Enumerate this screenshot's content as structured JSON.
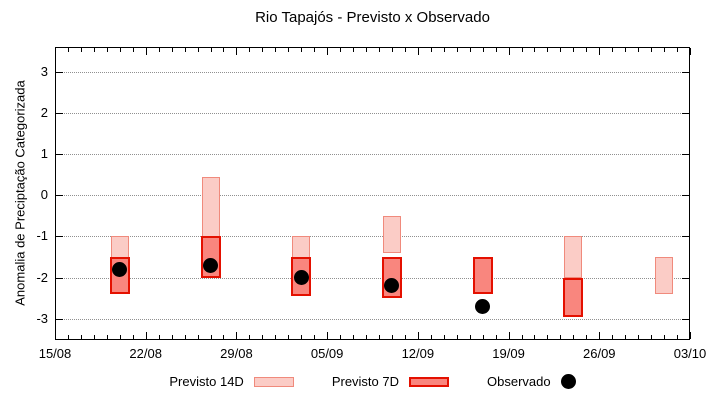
{
  "title": "Rio Tapajós - Previsto x Observado",
  "y_axis": {
    "label": "Anomalia de Preciptação Categorizada",
    "tick_labels": [
      "3",
      "2",
      "1",
      "0",
      "-1",
      "-2",
      "-3"
    ]
  },
  "x_axis": {
    "tick_labels": [
      "15/08",
      "22/08",
      "29/08",
      "05/09",
      "12/09",
      "19/09",
      "26/09",
      "03/10"
    ]
  },
  "legend": {
    "items": [
      {
        "label": "Previsto 14D",
        "marker": "box",
        "fill": "#fbccc6",
        "border": "#f08a7c"
      },
      {
        "label": "Previsto 7D",
        "marker": "box",
        "fill": "#f9867e",
        "border": "#e41000"
      },
      {
        "label": "Observado",
        "marker": "dot",
        "fill": "#000000"
      }
    ]
  },
  "colors": {
    "previsto14d_fill": "#fbccc6",
    "previsto14d_border": "#f08a7c",
    "previsto7d_fill": "#f9867e",
    "previsto7d_border": "#e41000",
    "observado": "#000000",
    "grid": "#909090",
    "axis": "#000000"
  },
  "chart_data": {
    "type": "bar",
    "subtype": "floating-range-bars-with-scatter-overlay",
    "title": "Rio Tapajós - Previsto x Observado",
    "xlabel": "",
    "ylabel": "Anomalia de Preciptação Categorizada",
    "x_tick_labels": [
      "15/08",
      "22/08",
      "29/08",
      "05/09",
      "12/09",
      "19/09",
      "26/09",
      "03/10"
    ],
    "x_tick_day_offsets": [
      0,
      7,
      14,
      21,
      28,
      35,
      42,
      49
    ],
    "x_minor_tick_every_days": 1,
    "xlim_days": [
      0,
      49
    ],
    "y_ticks": [
      -3,
      -2,
      -1,
      0,
      1,
      2,
      3
    ],
    "ylim": [
      -3.52,
      3.61
    ],
    "grid": {
      "horizontal": true,
      "style": "dotted",
      "legend_position": "bottom-outside"
    },
    "categories": [
      "20/08",
      "27/08",
      "03/09",
      "10/09",
      "17/09",
      "24/09",
      "01/10"
    ],
    "category_day_offsets": [
      5,
      12,
      19,
      26,
      33,
      40,
      47
    ],
    "series": [
      {
        "name": "Previsto 14D",
        "type": "range_bar",
        "fill": "#fbccc6",
        "border": "#f08a7c",
        "ranges": [
          {
            "date": "20/08",
            "day": 5,
            "high": -1.0,
            "low": -2.4
          },
          {
            "date": "27/08",
            "day": 12,
            "high": 0.45,
            "low": -2.0
          },
          {
            "date": "03/09",
            "day": 19,
            "high": -1.0,
            "low": -2.45
          },
          {
            "date": "10/09",
            "day": 26,
            "high": -0.5,
            "low": -1.4
          },
          {
            "date": "24/09",
            "day": 40,
            "high": -1.0,
            "low": -2.0
          },
          {
            "date": "01/10",
            "day": 47,
            "high": -1.5,
            "low": -2.4
          }
        ]
      },
      {
        "name": "Previsto 7D",
        "type": "range_bar",
        "fill": "#f9867e",
        "border": "#e41000",
        "ranges": [
          {
            "date": "20/08",
            "day": 5,
            "high": -1.5,
            "low": -2.4
          },
          {
            "date": "27/08",
            "day": 12,
            "high": -1.0,
            "low": -2.0
          },
          {
            "date": "03/09",
            "day": 19,
            "high": -1.5,
            "low": -2.45
          },
          {
            "date": "10/09",
            "day": 26,
            "high": -1.5,
            "low": -2.5
          },
          {
            "date": "17/09",
            "day": 33,
            "high": -1.5,
            "low": -2.4
          },
          {
            "date": "24/09",
            "day": 40,
            "high": -2.0,
            "low": -2.95
          }
        ]
      },
      {
        "name": "Observado",
        "type": "scatter",
        "color": "#000000",
        "points": [
          {
            "date": "20/08",
            "day": 5,
            "value": -1.8
          },
          {
            "date": "27/08",
            "day": 12,
            "value": -1.7
          },
          {
            "date": "03/09",
            "day": 19,
            "value": -2.0
          },
          {
            "date": "10/09",
            "day": 26,
            "value": -2.2
          },
          {
            "date": "17/09",
            "day": 33,
            "value": -2.7
          }
        ]
      }
    ]
  }
}
